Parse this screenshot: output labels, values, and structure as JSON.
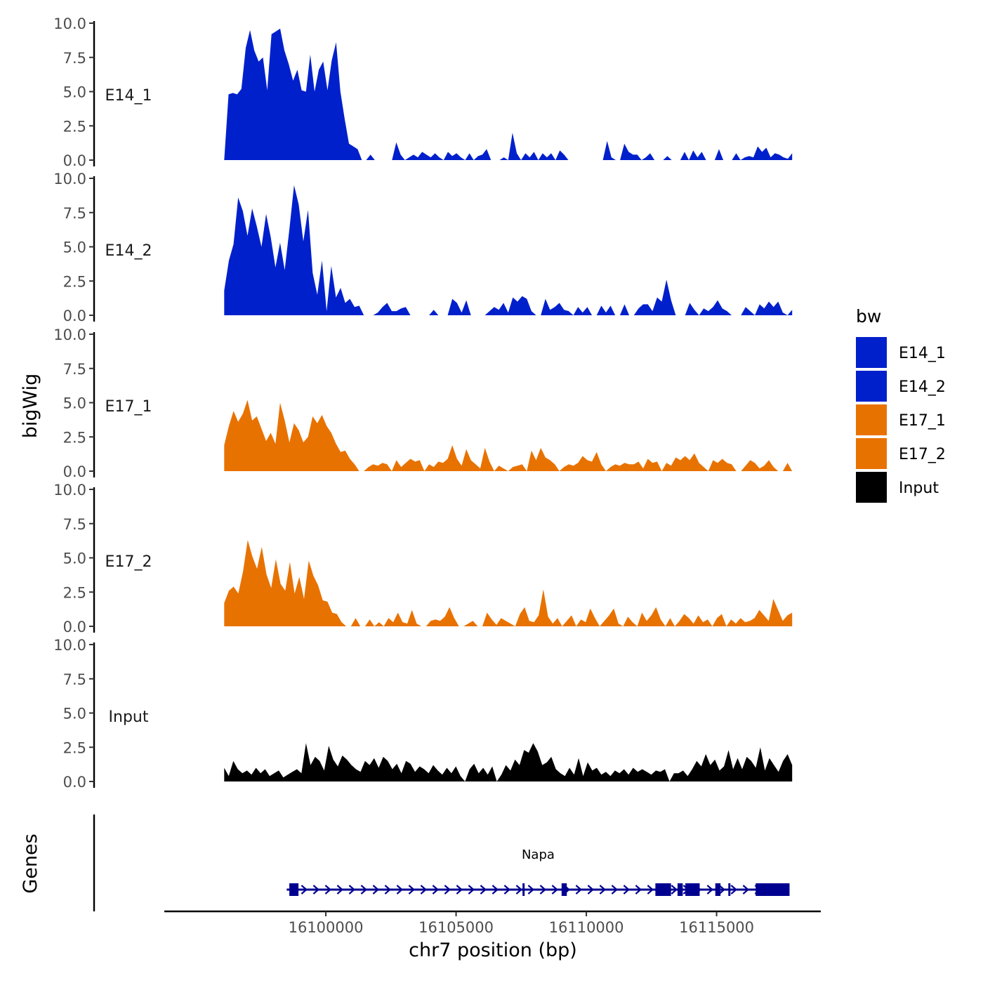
{
  "chart_data": {
    "type": "area",
    "y_axis_title": "bigWig",
    "x_axis_title": "chr7 position (bp)",
    "genes_axis_title": "Genes",
    "y_ticks": [
      "0.0",
      "2.5",
      "5.0",
      "7.5",
      "10.0"
    ],
    "y_tick_values": [
      0,
      2.5,
      5,
      7.5,
      10
    ],
    "ylim": [
      0,
      10
    ],
    "xlim": [
      16093800,
      16119000
    ],
    "x_ticks": [
      "16100000",
      "16105000",
      "16110000",
      "16115000"
    ],
    "x_tick_values": [
      16100000,
      16105000,
      16110000,
      16115000
    ],
    "legend": {
      "title": "bw",
      "entries": [
        {
          "label": "E14_1",
          "color": "#0020CC"
        },
        {
          "label": "E14_2",
          "color": "#0020CC"
        },
        {
          "label": "E17_1",
          "color": "#E87200"
        },
        {
          "label": "E17_2",
          "color": "#E87200"
        },
        {
          "label": "Input",
          "color": "#000000"
        }
      ]
    },
    "series": [
      {
        "name": "E14_1",
        "color": "#0020CC",
        "x_start": 16096100,
        "x_end": 16117900,
        "values": [
          0.0,
          4.8,
          4.9,
          4.8,
          5.2,
          8.2,
          9.5,
          8.0,
          7.2,
          7.5,
          5.1,
          9.2,
          9.4,
          9.6,
          8.0,
          7.0,
          5.8,
          6.6,
          5.1,
          5.0,
          7.7,
          5.0,
          6.6,
          7.2,
          5.1,
          7.3,
          8.6,
          5.0,
          3.0,
          1.2,
          1.0,
          0.8,
          0.0,
          0.0,
          0.4,
          0.0,
          0.0,
          0.0,
          0.0,
          0.0,
          1.3,
          0.4,
          0.0,
          0.2,
          0.4,
          0.2,
          0.6,
          0.4,
          0.2,
          0.5,
          0.2,
          0.0,
          0.6,
          0.3,
          0.5,
          0.2,
          0.0,
          0.5,
          0.0,
          0.3,
          0.4,
          0.8,
          0.0,
          0.0,
          0.0,
          0.2,
          0.0,
          2.0,
          0.5,
          0.0,
          0.5,
          0.2,
          0.6,
          0.0,
          0.5,
          0.2,
          0.5,
          0.0,
          0.7,
          0.4,
          0.0,
          0.0,
          0.0,
          0.0,
          0.0,
          0.0,
          0.0,
          0.0,
          0.0,
          1.4,
          0.2,
          0.0,
          0.0,
          1.2,
          0.6,
          0.4,
          0.4,
          0.0,
          0.2,
          0.5,
          0.0,
          0.0,
          0.0,
          0.3,
          0.0,
          0.0,
          0.0,
          0.6,
          0.0,
          0.7,
          0.2,
          0.6,
          0.0,
          0.0,
          0.0,
          0.8,
          0.0,
          0.0,
          0.0,
          0.5,
          0.0,
          0.2,
          0.3,
          0.2,
          1.0,
          0.6,
          0.9,
          0.2,
          0.5,
          0.4,
          0.2,
          0.1,
          0.5
        ]
      },
      {
        "name": "E14_2",
        "color": "#0020CC",
        "x_start": 16096100,
        "x_end": 16117900,
        "values": [
          1.8,
          4.0,
          5.2,
          8.6,
          7.6,
          5.8,
          7.8,
          6.5,
          5.0,
          7.4,
          5.7,
          3.5,
          5.3,
          3.3,
          6.3,
          9.5,
          8.1,
          5.4,
          7.7,
          3.1,
          1.5,
          4.0,
          0.3,
          3.6,
          1.3,
          2.0,
          0.9,
          1.2,
          0.6,
          0.7,
          0.0,
          0.0,
          0.0,
          0.2,
          0.6,
          0.9,
          0.3,
          0.3,
          0.5,
          0.6,
          0.0,
          0.0,
          0.0,
          0.0,
          0.0,
          0.4,
          0.0,
          0.0,
          0.0,
          1.2,
          0.9,
          0.2,
          1.1,
          0.0,
          0.0,
          0.0,
          0.0,
          0.3,
          0.6,
          0.4,
          0.9,
          0.2,
          1.3,
          1.0,
          1.4,
          1.2,
          0.3,
          0.0,
          0.0,
          1.2,
          0.4,
          0.6,
          0.9,
          0.4,
          0.3,
          0.0,
          0.6,
          0.2,
          0.6,
          0.0,
          0.0,
          0.7,
          0.2,
          0.7,
          0.0,
          0.0,
          0.8,
          0.0,
          0.0,
          0.5,
          0.8,
          0.8,
          0.3,
          1.3,
          1.0,
          2.6,
          1.1,
          0.0,
          0.0,
          0.0,
          0.9,
          0.4,
          0.0,
          0.5,
          0.3,
          0.6,
          1.1,
          0.5,
          0.3,
          0.0,
          0.0,
          0.0,
          0.6,
          0.3,
          0.0,
          0.8,
          0.5,
          1.0,
          0.6,
          1.0,
          0.2,
          0.0,
          0.4
        ]
      },
      {
        "name": "E17_1",
        "color": "#E87200",
        "x_start": 16096100,
        "x_end": 16117900,
        "values": [
          1.9,
          3.3,
          4.4,
          3.6,
          4.2,
          5.2,
          3.7,
          4.0,
          3.1,
          2.2,
          2.8,
          2.0,
          5.0,
          3.7,
          2.1,
          3.5,
          3.0,
          2.1,
          2.5,
          4.0,
          3.5,
          4.1,
          3.3,
          2.8,
          2.0,
          1.4,
          1.5,
          0.9,
          0.5,
          0.0,
          0.0,
          0.3,
          0.5,
          0.4,
          0.6,
          0.5,
          0.0,
          0.8,
          0.3,
          0.6,
          0.9,
          0.7,
          0.8,
          0.0,
          0.5,
          0.3,
          0.7,
          0.6,
          0.9,
          1.9,
          0.9,
          0.4,
          1.6,
          0.8,
          0.5,
          0.2,
          1.7,
          0.7,
          0.0,
          0.4,
          0.2,
          0.0,
          0.3,
          0.4,
          0.5,
          0.0,
          1.5,
          0.8,
          1.7,
          1.0,
          0.8,
          0.5,
          0.0,
          0.3,
          0.5,
          0.4,
          0.6,
          1.1,
          0.8,
          0.7,
          1.4,
          0.5,
          0.0,
          0.3,
          0.5,
          0.4,
          0.6,
          0.5,
          0.5,
          0.7,
          0.2,
          0.9,
          0.6,
          0.7,
          0.0,
          0.6,
          0.4,
          1.0,
          0.8,
          1.1,
          0.8,
          1.3,
          0.6,
          0.3,
          0.0,
          0.8,
          0.6,
          0.9,
          0.6,
          0.5,
          0.0,
          0.0,
          0.4,
          0.8,
          0.6,
          0.2,
          0.4,
          0.8,
          0.3,
          0.0,
          0.0,
          0.6,
          0.0
        ]
      },
      {
        "name": "E17_2",
        "color": "#E87200",
        "x_start": 16096100,
        "x_end": 16117900,
        "values": [
          1.7,
          2.6,
          2.9,
          2.4,
          4.0,
          6.3,
          5.1,
          4.2,
          5.8,
          3.8,
          2.8,
          4.9,
          3.1,
          2.6,
          4.7,
          2.4,
          3.6,
          2.0,
          4.8,
          3.7,
          3.0,
          1.9,
          1.8,
          1.0,
          0.9,
          0.3,
          0.0,
          0.0,
          0.6,
          0.0,
          0.0,
          0.5,
          0.0,
          0.3,
          0.0,
          0.6,
          0.3,
          1.0,
          0.3,
          0.2,
          1.2,
          0.2,
          0.0,
          0.0,
          0.4,
          0.5,
          0.4,
          0.7,
          1.4,
          0.6,
          0.0,
          0.0,
          0.2,
          0.4,
          0.0,
          0.0,
          1.0,
          0.5,
          0.1,
          0.6,
          0.4,
          0.2,
          0.0,
          0.9,
          1.4,
          0.4,
          0.3,
          0.8,
          2.7,
          0.7,
          0.2,
          0.6,
          0.0,
          0.4,
          0.8,
          0.0,
          0.5,
          0.3,
          1.3,
          0.6,
          0.0,
          0.4,
          0.8,
          1.3,
          0.2,
          0.0,
          0.7,
          0.3,
          0.0,
          1.0,
          0.4,
          0.8,
          1.4,
          0.5,
          0.0,
          0.6,
          0.0,
          0.4,
          0.9,
          0.6,
          0.2,
          0.8,
          0.3,
          0.5,
          0.0,
          0.6,
          0.9,
          0.0,
          0.5,
          0.2,
          0.6,
          0.3,
          0.4,
          0.6,
          1.2,
          0.8,
          0.4,
          2.0,
          1.2,
          0.4,
          0.8,
          1.0
        ]
      },
      {
        "name": "Input",
        "color": "#000000",
        "x_start": 16096100,
        "x_end": 16117900,
        "values": [
          1.0,
          0.4,
          1.5,
          0.9,
          0.6,
          0.8,
          0.5,
          1.0,
          0.6,
          0.9,
          0.4,
          0.6,
          0.8,
          0.3,
          0.5,
          0.7,
          0.9,
          0.6,
          2.8,
          1.2,
          1.8,
          1.5,
          0.8,
          2.6,
          1.6,
          1.1,
          1.9,
          1.6,
          1.2,
          0.9,
          0.7,
          1.5,
          1.2,
          1.7,
          1.0,
          1.8,
          1.5,
          0.9,
          1.3,
          0.6,
          1.5,
          1.3,
          0.7,
          1.1,
          0.9,
          0.6,
          1.2,
          0.8,
          0.5,
          1.0,
          0.6,
          1.1,
          0.4,
          0.0,
          0.9,
          1.3,
          0.6,
          1.0,
          0.5,
          1.1,
          0.0,
          0.5,
          1.2,
          0.8,
          1.6,
          1.2,
          2.3,
          2.1,
          2.8,
          2.2,
          1.2,
          1.4,
          1.8,
          0.9,
          0.6,
          0.4,
          1.0,
          0.5,
          1.7,
          0.4,
          1.4,
          0.8,
          1.0,
          0.5,
          0.7,
          0.4,
          0.8,
          0.6,
          0.9,
          0.5,
          1.0,
          0.7,
          0.9,
          0.7,
          0.5,
          0.8,
          0.7,
          0.9,
          0.0,
          0.6,
          0.6,
          0.8,
          0.4,
          0.9,
          1.5,
          1.1,
          2.0,
          1.2,
          1.6,
          0.8,
          1.1,
          2.3,
          0.9,
          1.7,
          0.9,
          1.8,
          1.5,
          1.0,
          2.5,
          0.8,
          1.7,
          1.2,
          0.7,
          1.5,
          2.0,
          1.2
        ]
      }
    ],
    "genes": {
      "label": "Napa",
      "color": "#000090",
      "start": 16098500,
      "end": 16117800,
      "strand": "+",
      "exons": [
        {
          "start": 16098600,
          "end": 16098950
        },
        {
          "start": 16107550,
          "end": 16107600
        },
        {
          "start": 16109050,
          "end": 16109250
        },
        {
          "start": 16112650,
          "end": 16113250
        },
        {
          "start": 16113500,
          "end": 16113700
        },
        {
          "start": 16113800,
          "end": 16114350
        },
        {
          "start": 16114950,
          "end": 16115150
        },
        {
          "start": 16115450,
          "end": 16115500
        },
        {
          "start": 16116500,
          "end": 16117800
        }
      ]
    }
  }
}
